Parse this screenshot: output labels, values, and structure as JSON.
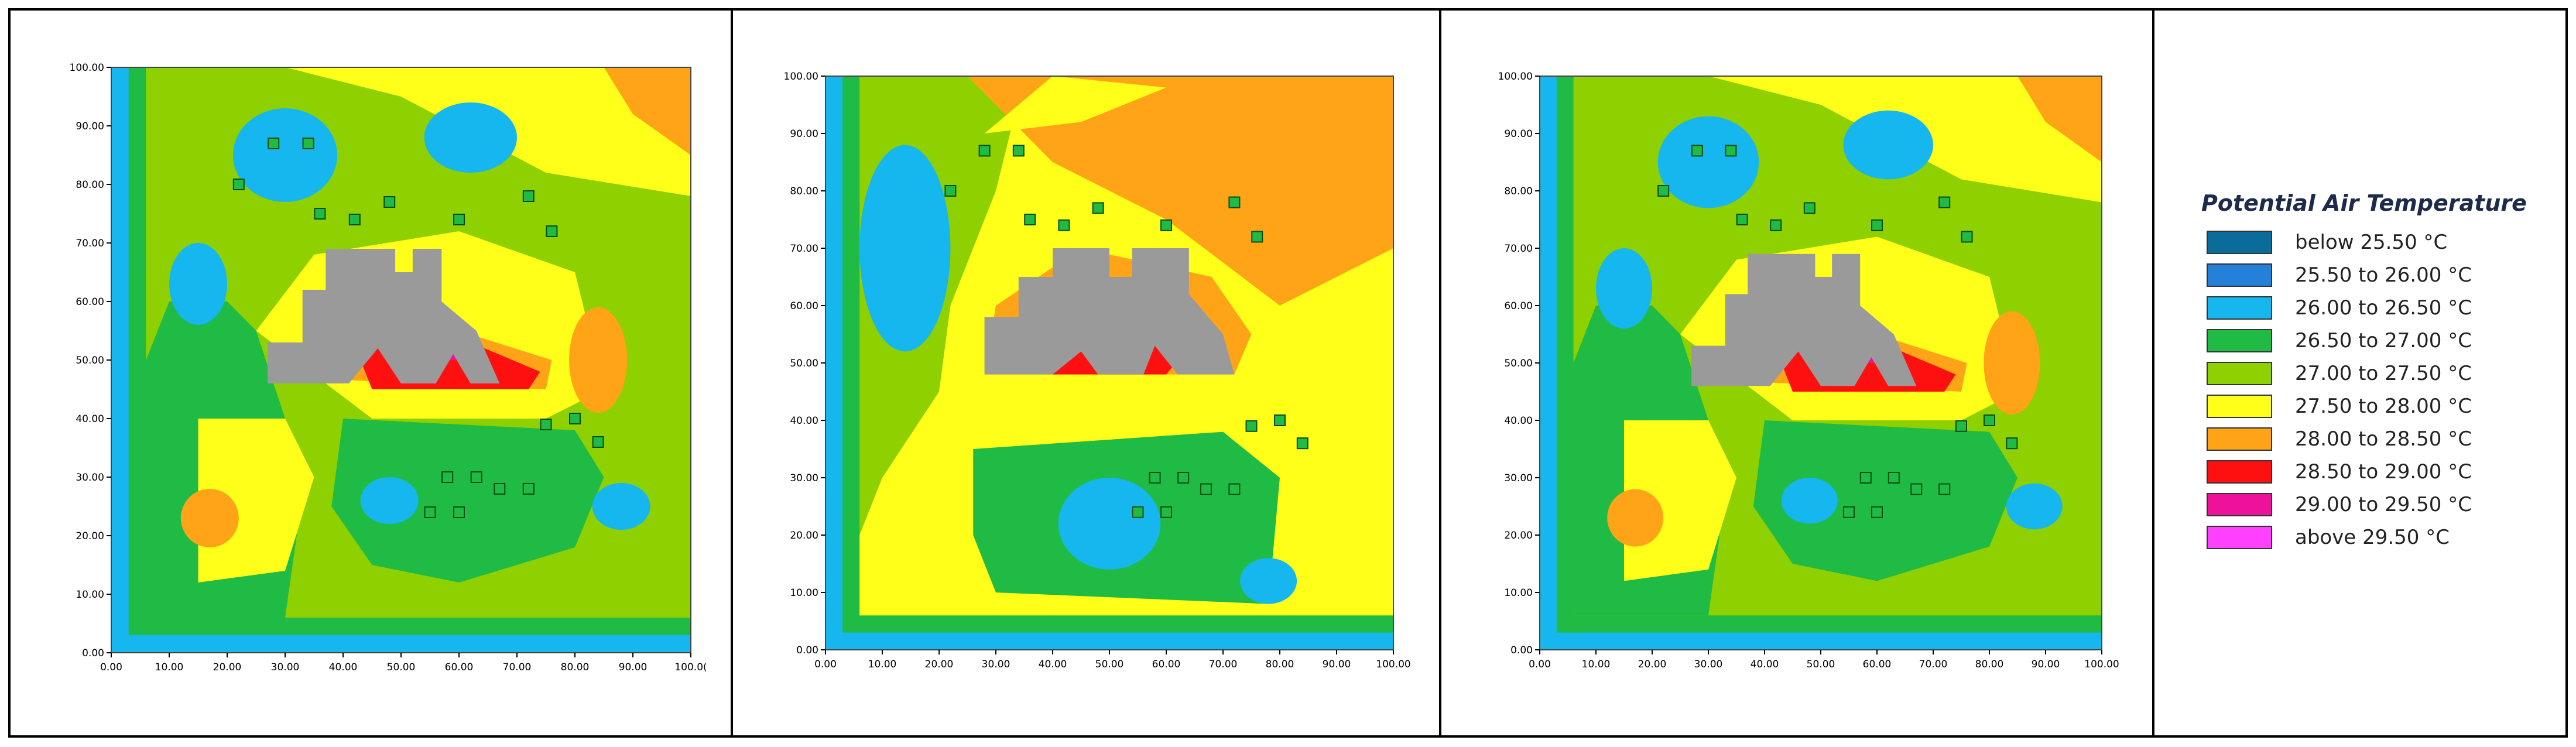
{
  "colors": {
    "below_25_50": "#0b6b9b",
    "c25_50_26_00": "#2480d8",
    "c26_00_26_50": "#16b7ef",
    "c26_50_27_00": "#1fbb45",
    "c27_00_27_50": "#8fd000",
    "c27_50_28_00": "#ffff19",
    "c28_00_28_50": "#ffa317",
    "c28_50_29_00": "#ff1010",
    "c29_00_29_50": "#ee1199",
    "above_29_50": "#ff40ff",
    "building": "#9a9a9a"
  },
  "chart_data": [
    {
      "type": "heatmap",
      "x_ticks": [
        "0.00",
        "10.00",
        "20.00",
        "30.00",
        "40.00",
        "50.00",
        "60.00",
        "70.00",
        "80.00",
        "90.00",
        "100.0("
      ],
      "y_ticks": [
        "0.00",
        "10.00",
        "20.00",
        "30.00",
        "40.00",
        "50.00",
        "60.00",
        "70.00",
        "80.00",
        "90.00",
        "100.00"
      ],
      "xlim": [
        0,
        100
      ],
      "ylim": [
        0,
        100
      ]
    },
    {
      "type": "heatmap",
      "x_ticks": [
        "0.00",
        "10.00",
        "20.00",
        "30.00",
        "40.00",
        "50.00",
        "60.00",
        "70.00",
        "80.00",
        "90.00",
        "100.00"
      ],
      "y_ticks": [
        "0.00",
        "10.00",
        "20.00",
        "30.00",
        "40.00",
        "50.00",
        "60.00",
        "70.00",
        "80.00",
        "90.00",
        "100.00"
      ],
      "xlim": [
        0,
        100
      ],
      "ylim": [
        0,
        100
      ]
    },
    {
      "type": "heatmap",
      "x_ticks": [
        "0.00",
        "10.00",
        "20.00",
        "30.00",
        "40.00",
        "50.00",
        "60.00",
        "70.00",
        "80.00",
        "90.00",
        "100.00"
      ],
      "y_ticks": [
        "0.00",
        "10.00",
        "20.00",
        "30.00",
        "40.00",
        "50.00",
        "60.00",
        "70.00",
        "80.00",
        "90.00",
        "100.00"
      ],
      "xlim": [
        0,
        100
      ],
      "ylim": [
        0,
        100
      ]
    }
  ],
  "legend": {
    "title": "Potential Air Temperature",
    "items": [
      {
        "label": "below 25.50 °C",
        "color": "#0b6b9b"
      },
      {
        "label": "25.50 to 26.00 °C",
        "color": "#2480d8"
      },
      {
        "label": "26.00 to 26.50 °C",
        "color": "#16b7ef"
      },
      {
        "label": "26.50 to 27.00 °C",
        "color": "#1fbb45"
      },
      {
        "label": "27.00 to 27.50 °C",
        "color": "#8fd000"
      },
      {
        "label": "27.50 to 28.00 °C",
        "color": "#ffff19"
      },
      {
        "label": "28.00 to 28.50 °C",
        "color": "#ffa317"
      },
      {
        "label": "28.50 to 29.00 °C",
        "color": "#ff1010"
      },
      {
        "label": "29.00 to 29.50 °C",
        "color": "#ee1199"
      },
      {
        "label": "above 29.50 °C",
        "color": "#ff40ff"
      }
    ]
  }
}
